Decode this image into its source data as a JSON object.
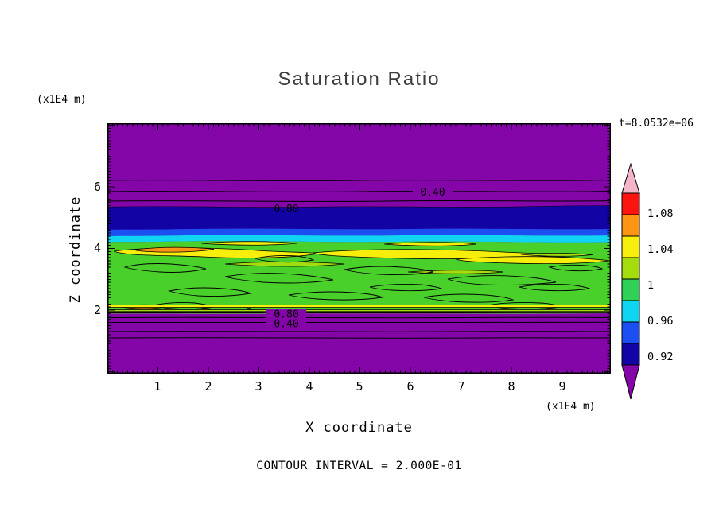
{
  "title": "Saturation Ratio",
  "annotations": {
    "time": "t=8.0532e+06",
    "contour_interval": "CONTOUR INTERVAL = 2.000E-01",
    "y_units": "(x1E4 m)",
    "x_units": "(x1E4 m)"
  },
  "axes": {
    "x_label": "X coordinate",
    "y_label": "Z coordinate",
    "x_ticks": [
      "1",
      "2",
      "3",
      "4",
      "5",
      "6",
      "7",
      "8",
      "9"
    ],
    "y_ticks": [
      "6",
      "4",
      "2"
    ]
  },
  "colorbar": {
    "labels": [
      "1.08",
      "1.04",
      "1",
      "0.96",
      "0.92"
    ],
    "colors": [
      "#f5b5c8",
      "#fb1410",
      "#fd9413",
      "#f8ee0c",
      "#a4dc0e",
      "#2ed156",
      "#0fd4f2",
      "#1c4ff2",
      "#1203a5",
      "#8406a8"
    ]
  },
  "contour_labels": {
    "top_040": "0.40",
    "top_080": "0.80",
    "bottom_080": "0.80",
    "bottom_040": "0.40"
  },
  "colors": {
    "purple": "#8406a8",
    "navy": "#1203a5",
    "blue": "#1c4ff2",
    "cyan": "#0fd4f2",
    "green": "#49d02b",
    "yellow_green": "#a4dc0e",
    "yellow": "#f8ee0c",
    "orange": "#fd9413",
    "frame": "#000000",
    "title_color": "#3d3d3d"
  },
  "chart_data": {
    "type": "heatmap",
    "title": "Saturation Ratio",
    "xlabel": "X coordinate",
    "ylabel": "Z coordinate",
    "axis_units": "x1E4 m",
    "x_ticks": [
      1,
      2,
      3,
      4,
      5,
      6,
      7,
      8,
      9
    ],
    "y_ticks": [
      2,
      4,
      6
    ],
    "x_range": [
      0,
      10
    ],
    "z_range": [
      0,
      8
    ],
    "time": "t=8.0532e+06",
    "contour_interval": 0.2,
    "colorbar_tick_values": [
      1.08,
      1.04,
      1.0,
      0.96,
      0.92
    ],
    "colorbar_over": "pink arrow, saturation > 1.08",
    "colorbar_under": "purple arrow, saturation < 0.92",
    "labeled_contours": [
      {
        "value": 0.4,
        "location": "upper purple region, z ~ 5.9"
      },
      {
        "value": 0.8,
        "location": "top of dark blue band, z ~ 5.4"
      },
      {
        "value": 0.8,
        "location": "bottom edge of green band, z ~ 1.95"
      },
      {
        "value": 0.4,
        "location": "lower purple region, z ~ 1.7"
      }
    ],
    "structure": [
      {
        "z_from": 5.4,
        "z_to": 8.1,
        "description": "dry purple region, saturation < 0.9 decreasing upward past 0.4 and 0.2 contours"
      },
      {
        "z_from": 5.05,
        "z_to": 5.4,
        "description": "dark navy band, saturation ~ 0.90-0.94"
      },
      {
        "z_from": 4.95,
        "z_to": 5.05,
        "description": "blue band, saturation ~ 0.94-0.96"
      },
      {
        "z_from": 4.75,
        "z_to": 4.95,
        "description": "cyan band, saturation ~ 0.96-0.98"
      },
      {
        "z_from": 2.0,
        "z_to": 4.75,
        "description": "green band, saturation ~ 0.98-1.02, containing elongated yellow streaks (~1.02-1.06) near z ~ 4.2-4.6 and many squiggly 1.0 contour loops"
      },
      {
        "z_from": 4.3,
        "z_to": 4.5,
        "description": "small orange streaks near x ~ 0.6-2.0 and near bottom-left, saturation ~ 1.06-1.08"
      },
      {
        "z_from": 0.0,
        "z_to": 2.0,
        "description": "dry purple region below the cloud band, saturation < 0.9 decreasing downward past 0.4 and 0.2 contours"
      }
    ]
  }
}
